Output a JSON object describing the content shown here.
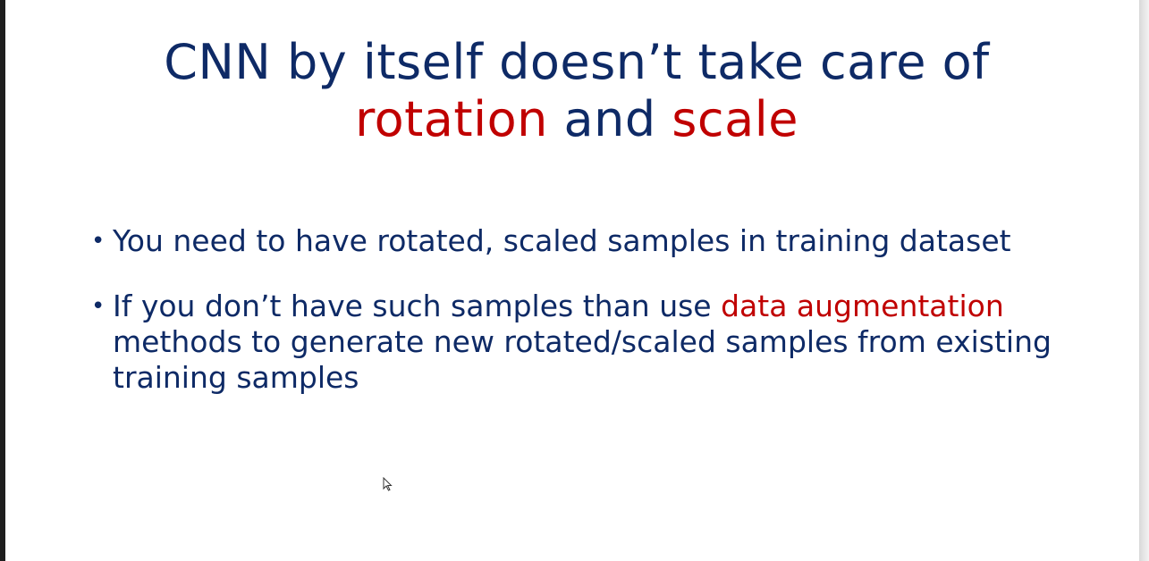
{
  "slide": {
    "title": {
      "line1": "CNN by itself doesn’t take care of",
      "line2_part1": "rotation",
      "line2_part2": " and ",
      "line2_part3": "scale"
    },
    "bullets": [
      {
        "text": "You need to have rotated, scaled samples in training dataset"
      },
      {
        "text_before": "If you don’t have such samples than use ",
        "highlight": "data augmentation",
        "text_after": " methods to generate new rotated/scaled samples from existing training samples"
      }
    ],
    "bullet_symbol": "•"
  },
  "colors": {
    "title_text": "#0e2a66",
    "accent": "#c00000",
    "background": "#ffffff"
  },
  "icons": {
    "cursor": "mouse-pointer-icon"
  }
}
